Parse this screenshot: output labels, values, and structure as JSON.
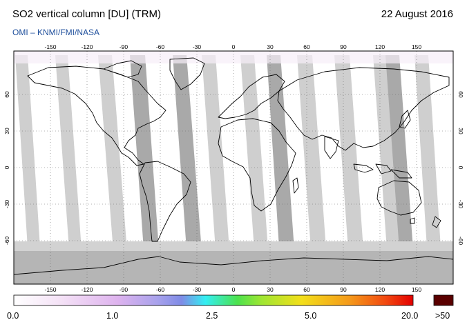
{
  "header": {
    "title": "SO2 vertical column [DU] (TRM)",
    "date": "22 August 2016",
    "credit": "OMI  –  KNMI/FMI/NASA"
  },
  "map": {
    "lon_ticks": [
      "-150",
      "-120",
      "-90",
      "-60",
      "-30",
      "0",
      "30",
      "60",
      "90",
      "120",
      "150"
    ],
    "lat_ticks": [
      "60",
      "30",
      "0",
      "-30",
      "-60"
    ]
  },
  "colorbar": {
    "labels": [
      "0.0",
      "1.0",
      "2.5",
      "5.0",
      "20.0"
    ],
    "overflow_label": ">50",
    "colors": [
      "#ffffff",
      "#f3d9f3",
      "#d7a6e8",
      "#8f8fe8",
      "#32f0f0",
      "#4be04b",
      "#f0e01e",
      "#f07d1e",
      "#e80000"
    ],
    "overflow_color": "#5a0000"
  }
}
